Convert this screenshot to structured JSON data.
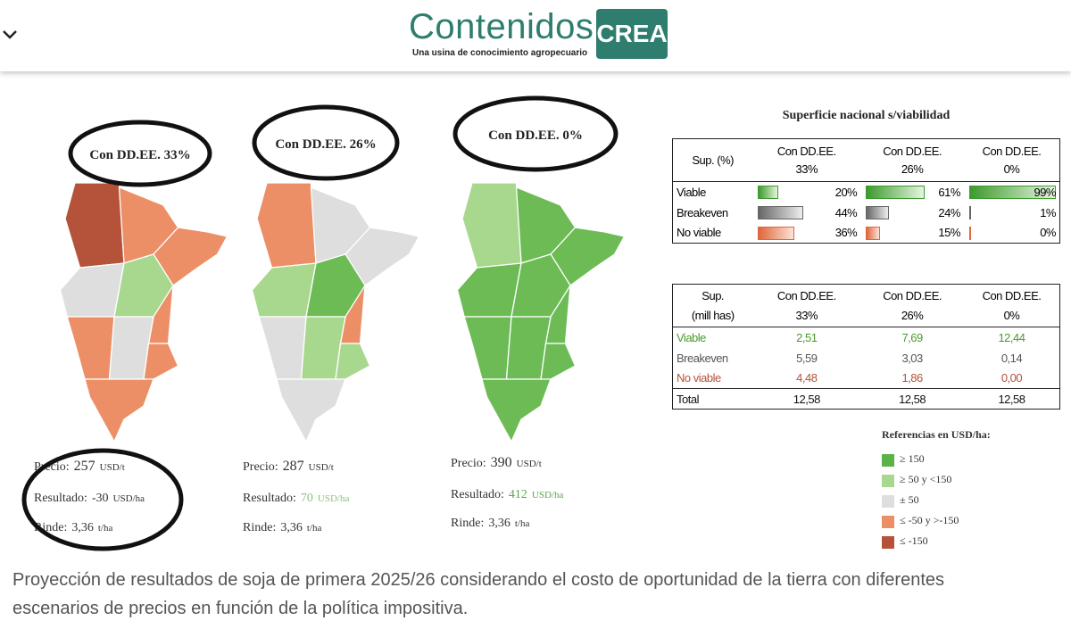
{
  "header": {
    "logo_title": "Contenidos",
    "logo_badge": "CREA",
    "logo_tagline": "Una usina de conocimiento agropecuario"
  },
  "maps": [
    {
      "label": "Con DD.EE. 33%",
      "price_label": "Precio:",
      "price": "257",
      "price_unit": "USD/t",
      "result_label": "Resultado:",
      "result": "-30",
      "result_unit": "USD/ha",
      "yield_label": "Rinde:",
      "yield": "3,36",
      "yield_unit": "t/ha"
    },
    {
      "label": "Con DD.EE. 26%",
      "price_label": "Precio:",
      "price": "287",
      "price_unit": "USD/t",
      "result_label": "Resultado:",
      "result": "70",
      "result_unit": "USD/ha",
      "yield_label": "Rinde:",
      "yield": "3,36",
      "yield_unit": "t/ha"
    },
    {
      "label": "Con DD.EE. 0%",
      "price_label": "Precio:",
      "price": "390",
      "price_unit": "USD/t",
      "result_label": "Resultado:",
      "result": "412",
      "result_unit": "USD/ha",
      "yield_label": "Rinde:",
      "yield": "3,36",
      "yield_unit": "t/ha"
    }
  ],
  "table_viability": {
    "title": "Superficie nacional s/viabilidad",
    "header": [
      [
        "Sup. (%)"
      ],
      [
        "Con DD.EE.",
        "33%"
      ],
      [
        "Con DD.EE.",
        "26%"
      ],
      [
        "Con DD.EE.",
        "0%"
      ]
    ],
    "rows": [
      {
        "label": "Viable",
        "values": [
          20,
          61,
          99
        ],
        "value_labels": [
          "20%",
          "61%",
          "99%"
        ]
      },
      {
        "label": "Breakeven",
        "values": [
          44,
          24,
          1
        ],
        "value_labels": [
          "44%",
          "24%",
          "1%"
        ]
      },
      {
        "label": "No viable",
        "values": [
          36,
          15,
          0
        ],
        "value_labels": [
          "36%",
          "15%",
          "0%"
        ]
      }
    ]
  },
  "table_area": {
    "header": [
      [
        "Sup.",
        "(mill has)"
      ],
      [
        "Con DD.EE.",
        "33%"
      ],
      [
        "Con DD.EE.",
        "26%"
      ],
      [
        "Con DD.EE.",
        "0%"
      ]
    ],
    "rows": [
      [
        "Viable",
        "2,51",
        "7,69",
        "12,44"
      ],
      [
        "Breakeven",
        "5,59",
        "3,03",
        "0,14"
      ],
      [
        "No viable",
        "4,48",
        "1,86",
        "0,00"
      ],
      [
        "Total",
        "12,58",
        "12,58",
        "12,58"
      ]
    ]
  },
  "legend": {
    "title": "Referencias en USD/ha:",
    "items": [
      {
        "label": "≥ 150",
        "color": "#5cb246"
      },
      {
        "label": "≥ 50 y <150",
        "color": "#a8d78e"
      },
      {
        "label": "± 50",
        "color": "#dedede"
      },
      {
        "label": "≤ -50 y >-150",
        "color": "#ec8f66"
      },
      {
        "label": "≤ -150",
        "color": "#b5533a"
      }
    ]
  },
  "caption": "Proyección de resultados de soja de primera 2025/26 considerando el costo de oportunidad de la tierra con diferentes escenarios de precios en función de la política impositiva."
}
